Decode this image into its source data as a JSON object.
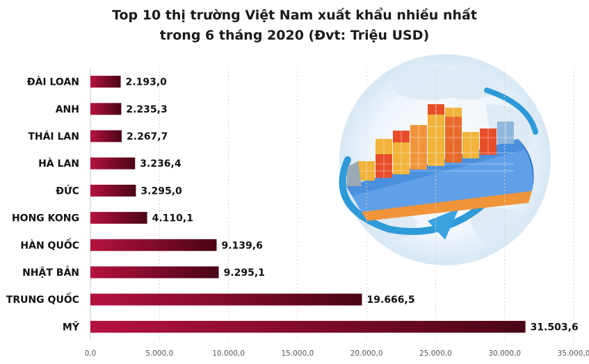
{
  "chart_data": {
    "type": "bar",
    "orientation": "horizontal",
    "title_line1": "Top 10 thị trường Việt Nam xuất khẩu nhiều nhất",
    "title_line2": "trong 6 tháng 2020 (Đvt: Triệu USD)",
    "categories": [
      "ĐÀI LOAN",
      "ANH",
      "THÁI LAN",
      "HÀ LAN",
      "ĐỨC",
      "HONG KONG",
      "HÀN QUỐC",
      "NHẬT BẢN",
      "TRUNG QUỐC",
      "MỸ"
    ],
    "values": [
      2193.0,
      2235.3,
      2267.7,
      3236.4,
      3295.0,
      4110.1,
      9139.6,
      9295.1,
      19666.5,
      31503.6
    ],
    "value_labels": [
      "2.193,0",
      "2.235,3",
      "2.267,7",
      "3.236,4",
      "3.295,0",
      "4.110,1",
      "9.139,6",
      "9.295,1",
      "19.666,5",
      "31.503,6"
    ],
    "xlim": [
      0,
      35000
    ],
    "x_ticks": [
      0,
      5000,
      10000,
      15000,
      20000,
      25000,
      30000,
      35000
    ],
    "x_tick_labels": [
      "0,0",
      "5.000,0",
      "10.000,0",
      "15.000,0",
      "20.000,0",
      "25.000,0",
      "30.000,0",
      "35.000,0"
    ],
    "grid": "vertical",
    "legend": "none",
    "bar_color_light": "#b5123f",
    "bar_color_dark": "#4a0515",
    "illustration": "cargo-ship-globe"
  }
}
